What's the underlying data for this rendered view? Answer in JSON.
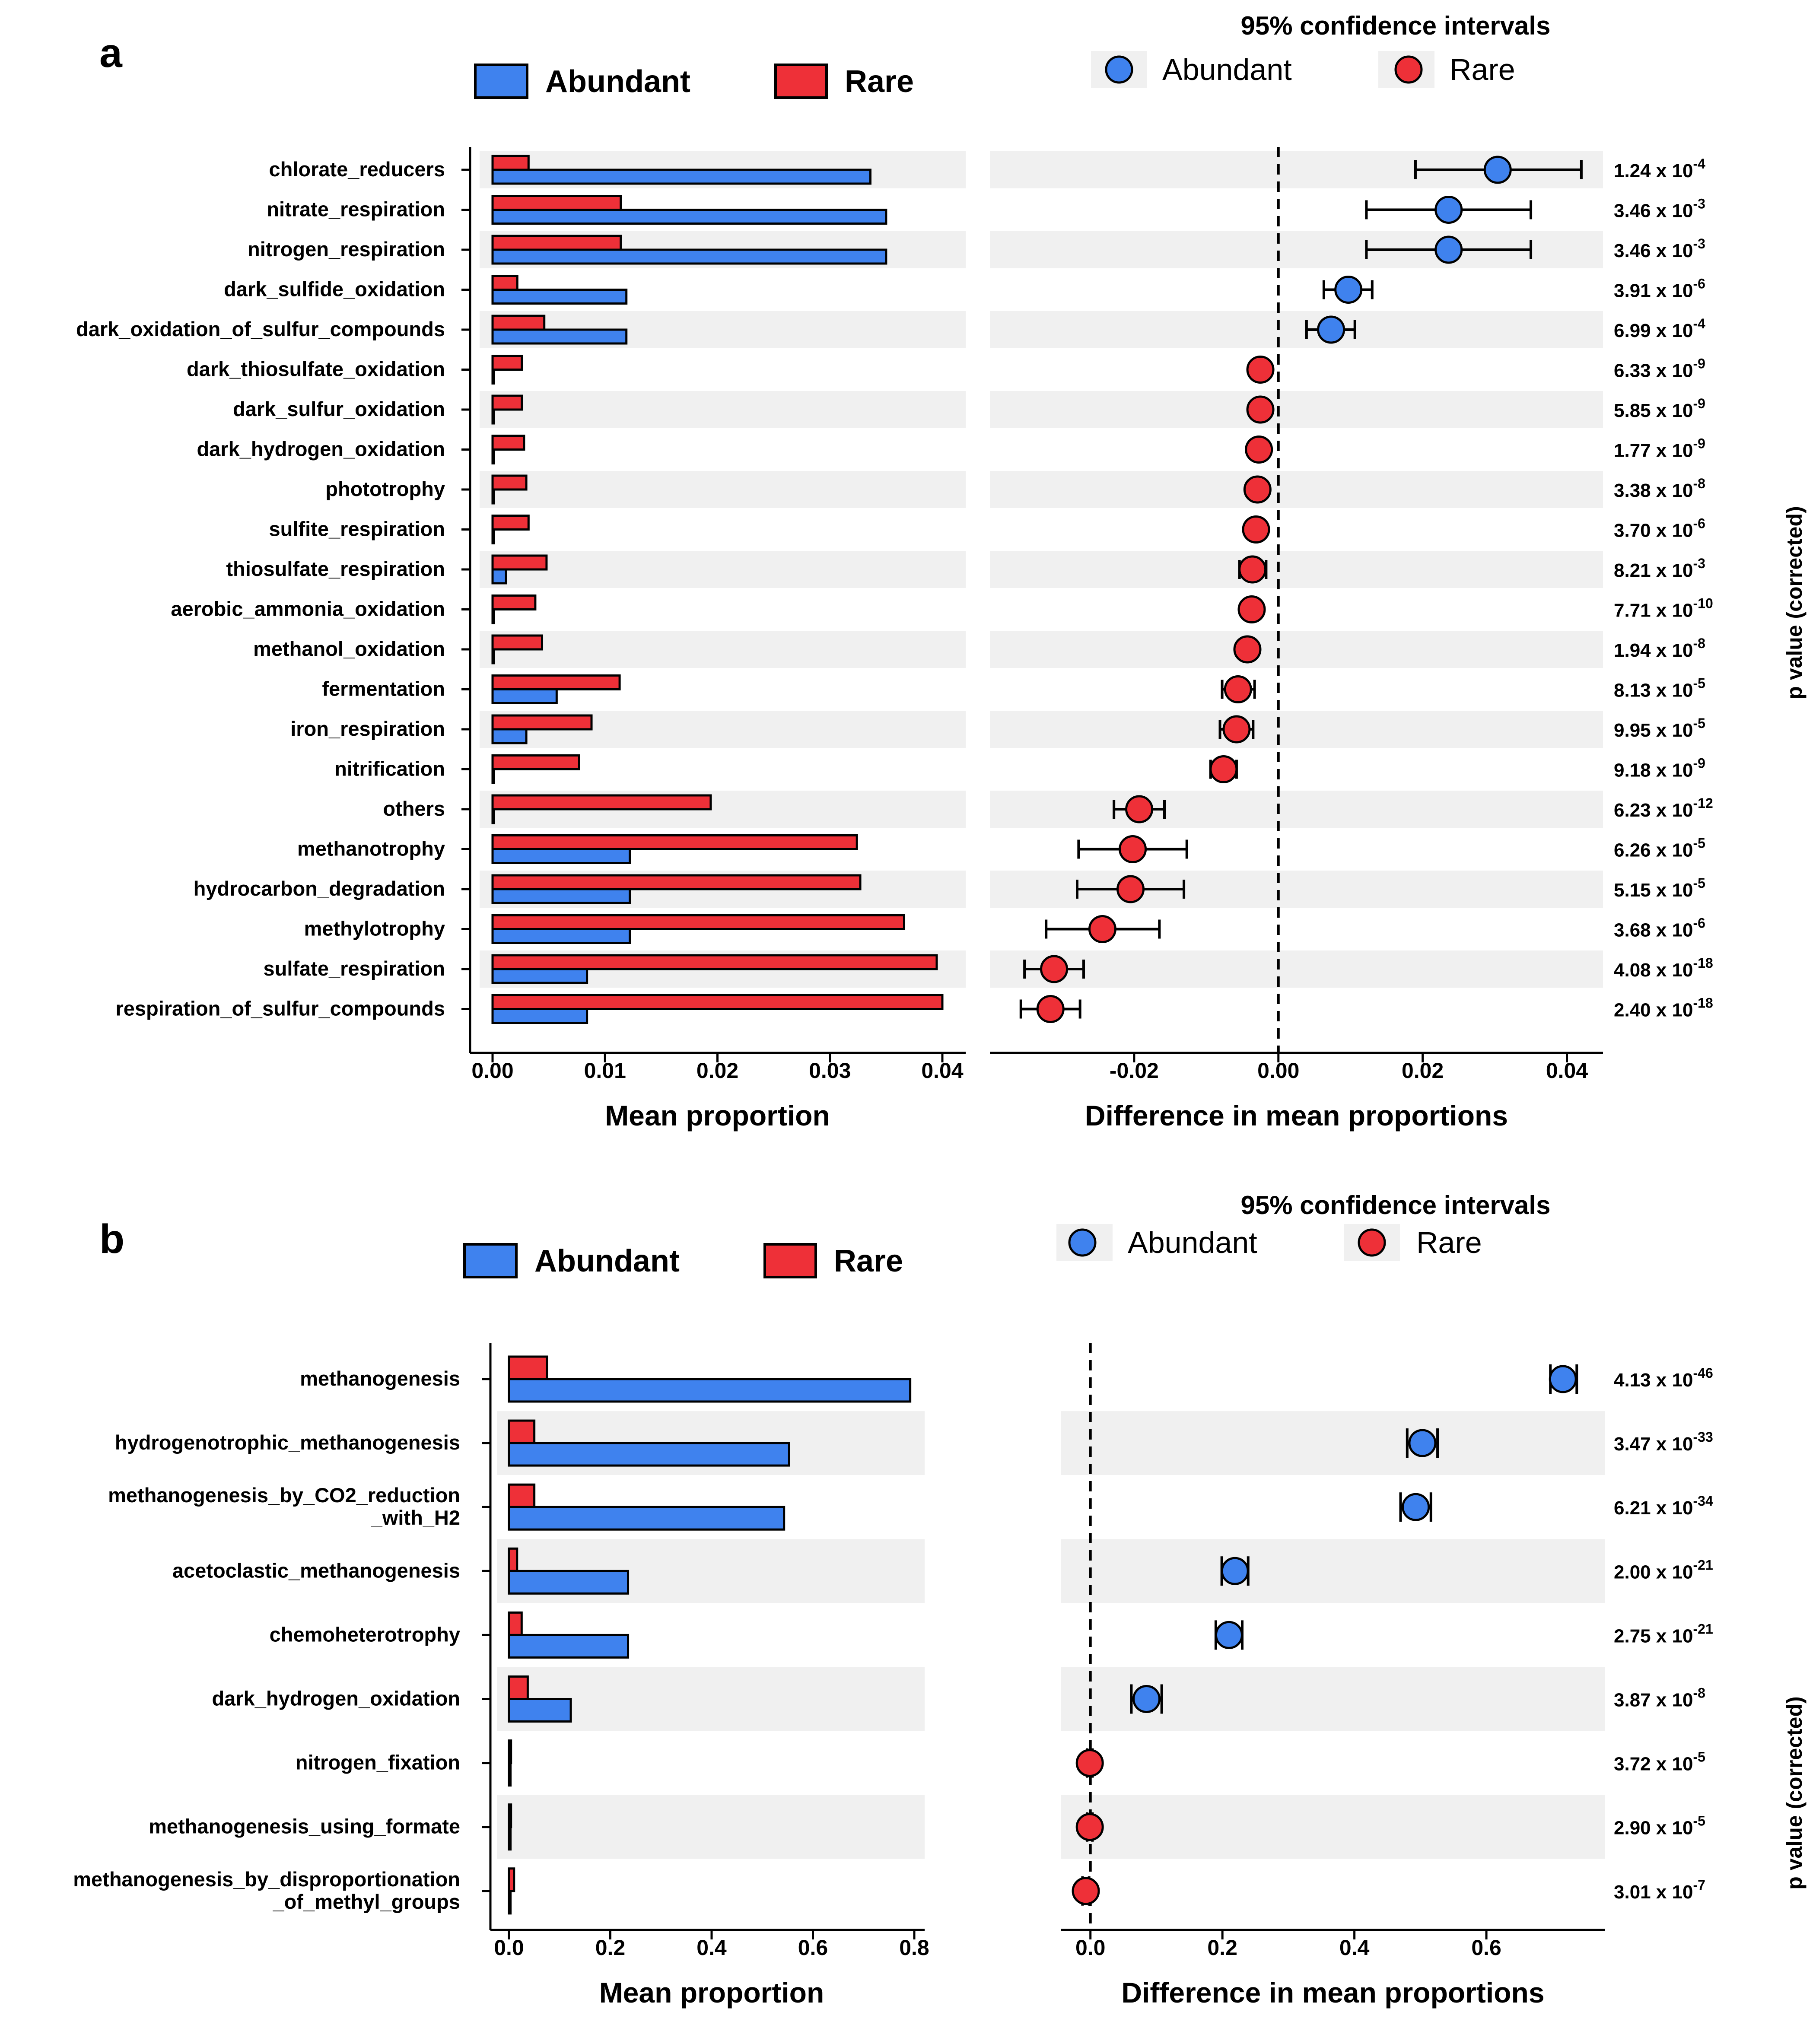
{
  "colors": {
    "abundant": "#3f82ee",
    "rare": "#ee3038",
    "stripe": "#f0f0f0",
    "axis": "#000000"
  },
  "panels": [
    {
      "letter": "a",
      "ci_title": "95% confidence intervals",
      "pvalue_label": "p value (corrected)",
      "legend": {
        "bar_abundant": "Abundant",
        "bar_rare": "Rare",
        "ci_abundant": "Abundant",
        "ci_rare": "Rare"
      }
    },
    {
      "letter": "b",
      "ci_title": "95% confidence intervals",
      "pvalue_label": "p value (corrected)",
      "legend": {
        "bar_abundant": "Abundant",
        "bar_rare": "Rare",
        "ci_abundant": "Abundant",
        "ci_rare": "Rare"
      }
    }
  ],
  "chart_data": [
    {
      "type": "bar",
      "panel": "a",
      "title": "",
      "xlabel": "Mean proportion",
      "xlim": [
        0,
        0.04
      ],
      "ticks": [
        0,
        0.01,
        0.02,
        0.03,
        0.04
      ],
      "tick_labels": [
        "0.00",
        "0.01",
        "0.02",
        "0.03",
        "0.04"
      ],
      "categories": [
        "chlorate_reducers",
        "nitrate_respiration",
        "nitrogen_respiration",
        "dark_sulfide_oxidation",
        "dark_oxidation_of_sulfur_compounds",
        "dark_thiosulfate_oxidation",
        "dark_sulfur_oxidation",
        "dark_hydrogen_oxidation",
        "phototrophy",
        "sulfite_respiration",
        "thiosulfate_respiration",
        "aerobic_ammonia_oxidation",
        "methanol_oxidation",
        "fermentation",
        "iron_respiration",
        "nitrification",
        "others",
        "methanotrophy",
        "hydrocarbon_degradation",
        "methylotrophy",
        "sulfate_respiration",
        "respiration_of_sulfur_compounds"
      ],
      "series": [
        {
          "name": "Abundant",
          "values": [
            0.0336,
            0.035,
            0.035,
            0.0119,
            0.0119,
            0.0001,
            0.0001,
            0.0001,
            0.0001,
            0.0001,
            0.0012,
            0.0001,
            0.0001,
            0.0057,
            0.003,
            0.0001,
            0.0001,
            0.0122,
            0.0122,
            0.0122,
            0.0084,
            0.0084
          ]
        },
        {
          "name": "Rare",
          "values": [
            0.0032,
            0.0114,
            0.0114,
            0.0022,
            0.0046,
            0.0026,
            0.0026,
            0.0028,
            0.003,
            0.0032,
            0.0048,
            0.0038,
            0.0044,
            0.0113,
            0.0088,
            0.0077,
            0.0194,
            0.0324,
            0.0327,
            0.0366,
            0.0395,
            0.04
          ]
        }
      ]
    },
    {
      "type": "scatter",
      "panel": "a",
      "title": "95% confidence intervals",
      "xlabel": "Difference in mean proportions",
      "xlim": [
        -0.04,
        0.045
      ],
      "ticks": [
        -0.02,
        0,
        0.02,
        0.04
      ],
      "tick_labels": [
        "-0.02",
        "0.00",
        "0.02",
        "0.04"
      ],
      "categories": [
        "chlorate_reducers",
        "nitrate_respiration",
        "nitrogen_respiration",
        "dark_sulfide_oxidation",
        "dark_oxidation_of_sulfur_compounds",
        "dark_thiosulfate_oxidation",
        "dark_sulfur_oxidation",
        "dark_hydrogen_oxidation",
        "phototrophy",
        "sulfite_respiration",
        "thiosulfate_respiration",
        "aerobic_ammonia_oxidation",
        "methanol_oxidation",
        "fermentation",
        "iron_respiration",
        "nitrification",
        "others",
        "methanotrophy",
        "hydrocarbon_degradation",
        "methylotrophy",
        "sulfate_respiration",
        "respiration_of_sulfur_compounds"
      ],
      "mean": [
        0.0304,
        0.0236,
        0.0236,
        0.0097,
        0.0073,
        -0.0025,
        -0.0025,
        -0.0027,
        -0.0029,
        -0.0031,
        -0.0036,
        -0.0037,
        -0.0043,
        -0.0056,
        -0.0058,
        -0.0076,
        -0.0193,
        -0.0202,
        -0.0205,
        -0.0244,
        -0.0311,
        -0.0316
      ],
      "lower": [
        0.019,
        0.0122,
        0.0122,
        0.0063,
        0.0039,
        -0.003,
        -0.003,
        -0.0032,
        -0.0034,
        -0.0036,
        -0.0054,
        -0.0042,
        -0.0048,
        -0.0078,
        -0.0081,
        -0.0094,
        -0.0228,
        -0.0277,
        -0.0279,
        -0.0322,
        -0.0352,
        -0.0357
      ],
      "upper": [
        0.042,
        0.035,
        0.035,
        0.013,
        0.0106,
        -0.002,
        -0.002,
        -0.0022,
        -0.0024,
        -0.0026,
        -0.0017,
        -0.0032,
        -0.0038,
        -0.0033,
        -0.0035,
        -0.0058,
        -0.0158,
        -0.0127,
        -0.0131,
        -0.0165,
        -0.027,
        -0.0275
      ],
      "groups": [
        "Abundant",
        "Abundant",
        "Abundant",
        "Abundant",
        "Abundant",
        "Rare",
        "Rare",
        "Rare",
        "Rare",
        "Rare",
        "Rare",
        "Rare",
        "Rare",
        "Rare",
        "Rare",
        "Rare",
        "Rare",
        "Rare",
        "Rare",
        "Rare",
        "Rare",
        "Rare"
      ],
      "p_mantissa": [
        "1.24",
        "3.46",
        "3.46",
        "3.91",
        "6.99",
        "6.33",
        "5.85",
        "1.77",
        "3.38",
        "3.70",
        "8.21",
        "7.71",
        "1.94",
        "8.13",
        "9.95",
        "9.18",
        "6.23",
        "6.26",
        "5.15",
        "3.68",
        "4.08",
        "2.40"
      ],
      "p_exponent": [
        "-4",
        "-3",
        "-3",
        "-6",
        "-4",
        "-9",
        "-9",
        "-9",
        "-8",
        "-6",
        "-3",
        "-10",
        "-8",
        "-5",
        "-5",
        "-9",
        "-12",
        "-5",
        "-5",
        "-6",
        "-18",
        "-18"
      ]
    },
    {
      "type": "bar",
      "panel": "b",
      "title": "",
      "xlabel": "Mean proportion",
      "xlim": [
        0,
        0.8
      ],
      "ticks": [
        0,
        0.2,
        0.4,
        0.6,
        0.8
      ],
      "tick_labels": [
        "0.0",
        "0.2",
        "0.4",
        "0.6",
        "0.8"
      ],
      "categories": [
        [
          "methanogenesis"
        ],
        [
          "hydrogenotrophic_methanogenesis"
        ],
        [
          "methanogenesis_by_CO2_reduction",
          "_with_H2"
        ],
        [
          "acetoclastic_methanogenesis"
        ],
        [
          "chemoheterotrophy"
        ],
        [
          "dark_hydrogen_oxidation"
        ],
        [
          "nitrogen_fixation"
        ],
        [
          "methanogenesis_using_formate"
        ],
        [
          "methanogenesis_by_disproportionation",
          "_of_methyl_groups"
        ]
      ],
      "series": [
        {
          "name": "Abundant",
          "values": [
            0.792,
            0.553,
            0.543,
            0.235,
            0.235,
            0.122,
            0.003,
            0.003,
            0.003
          ]
        },
        {
          "name": "Rare",
          "values": [
            0.075,
            0.05,
            0.05,
            0.016,
            0.025,
            0.037,
            0.004,
            0.004,
            0.01
          ]
        }
      ]
    },
    {
      "type": "scatter",
      "panel": "b",
      "title": "95% confidence intervals",
      "xlabel": "Difference in mean proportions",
      "xlim": [
        -0.045,
        0.78
      ],
      "ticks": [
        0,
        0.2,
        0.4,
        0.6
      ],
      "tick_labels": [
        "0.0",
        "0.2",
        "0.4",
        "0.6"
      ],
      "categories": [
        "methanogenesis",
        "hydrogenotrophic_methanogenesis",
        "methanogenesis_by_CO2_reduction_with_H2",
        "acetoclastic_methanogenesis",
        "chemoheterotrophy",
        "dark_hydrogen_oxidation",
        "nitrogen_fixation",
        "methanogenesis_using_formate",
        "methanogenesis_by_disproportionation_of_methyl_groups"
      ],
      "mean": [
        0.716,
        0.503,
        0.493,
        0.219,
        0.21,
        0.085,
        -0.001,
        -0.001,
        -0.007
      ],
      "lower": [
        0.697,
        0.48,
        0.47,
        0.199,
        0.19,
        0.062,
        -0.005,
        -0.005,
        -0.012
      ],
      "upper": [
        0.737,
        0.526,
        0.516,
        0.239,
        0.23,
        0.108,
        0.003,
        0.003,
        -0.002
      ],
      "groups": [
        "Abundant",
        "Abundant",
        "Abundant",
        "Abundant",
        "Abundant",
        "Abundant",
        "Rare",
        "Rare",
        "Rare"
      ],
      "p_mantissa": [
        "4.13",
        "3.47",
        "6.21",
        "2.00",
        "2.75",
        "3.87",
        "3.72",
        "2.90",
        "3.01"
      ],
      "p_exponent": [
        "-46",
        "-33",
        "-34",
        "-21",
        "-21",
        "-8",
        "-5",
        "-5",
        "-7"
      ]
    }
  ]
}
